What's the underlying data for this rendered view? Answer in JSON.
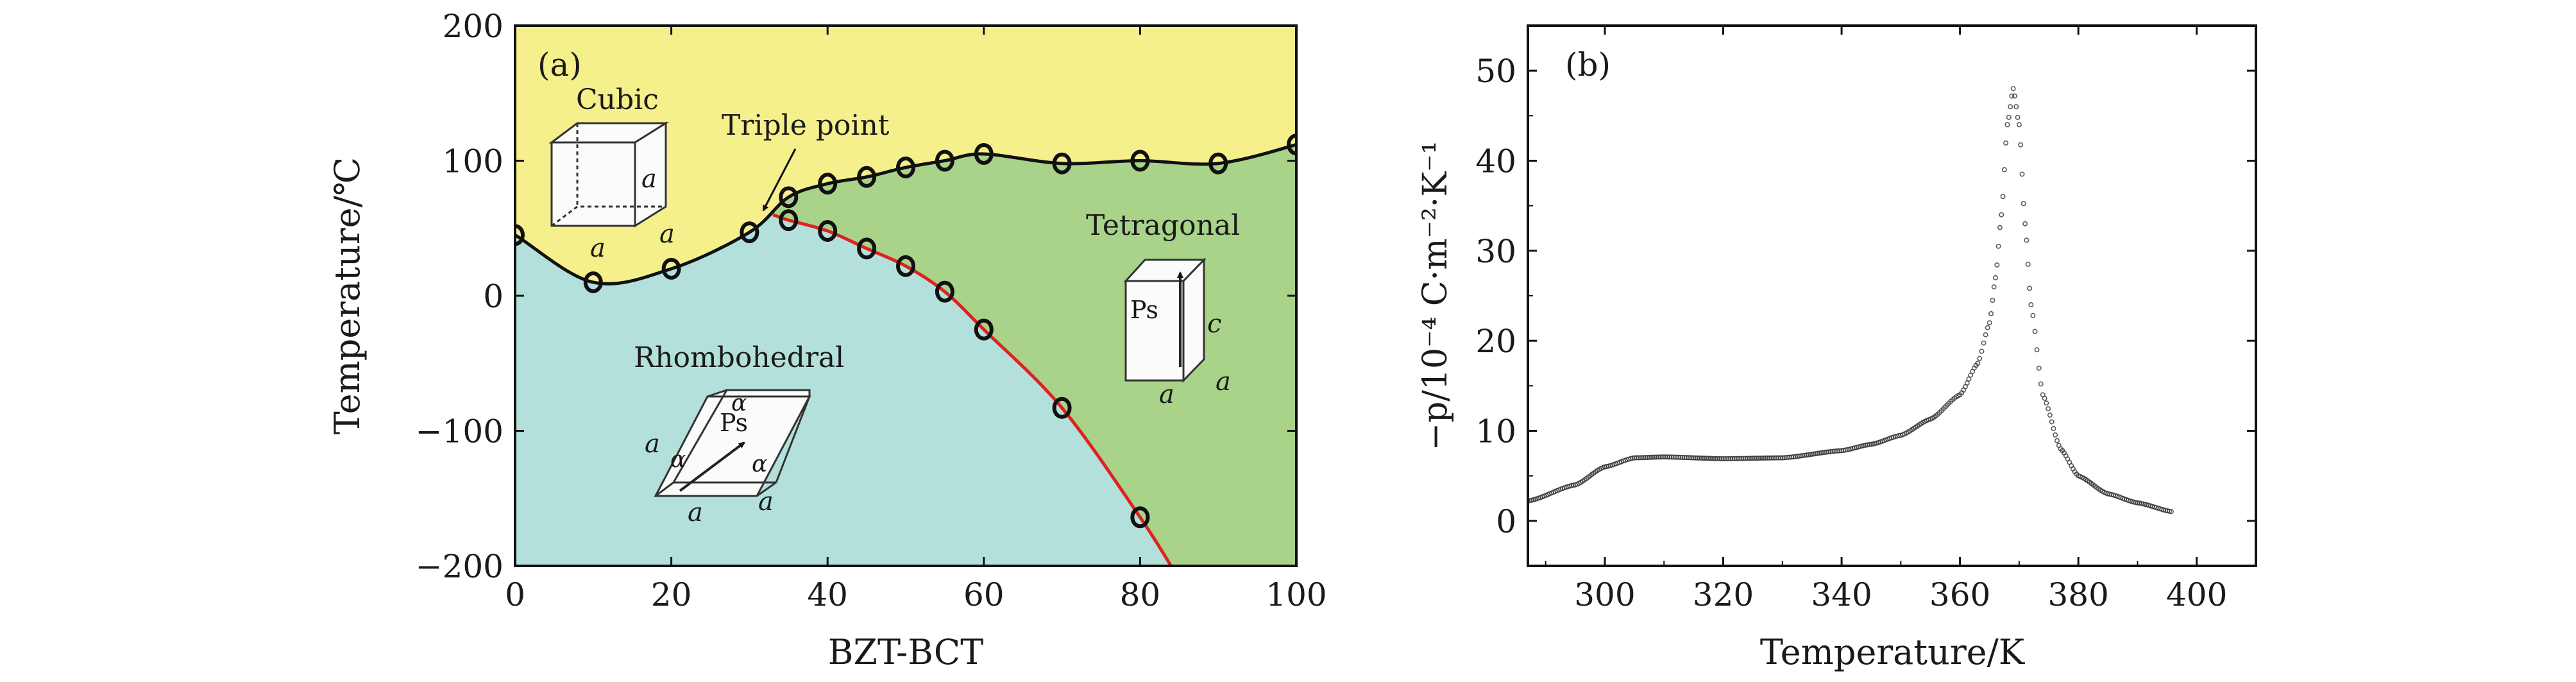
{
  "chart_data": [
    {
      "type": "line",
      "panel_label": "(a)",
      "xlabel": "BZT-BCT",
      "ylabel": "Temperature/℃",
      "xlim": [
        0,
        100
      ],
      "ylim": [
        -200,
        200
      ],
      "xticks": [
        "0",
        "20",
        "40",
        "60",
        "80",
        "100"
      ],
      "yticks": [
        "−200",
        "−100",
        "0",
        "100",
        "200"
      ],
      "series": [
        {
          "color": "#111111",
          "marker": "open-circle",
          "x": [
            0,
            10,
            20,
            30,
            35,
            40,
            45,
            50,
            55,
            60,
            70,
            80,
            90,
            100
          ],
          "y": [
            45,
            10,
            20,
            47,
            73,
            83,
            88,
            95,
            100,
            105,
            98,
            100,
            98,
            112
          ]
        },
        {
          "color": "#dd2222",
          "marker": "open-circle",
          "x": [
            35,
            40,
            45,
            50,
            55,
            60,
            70,
            80
          ],
          "y": [
            56,
            48,
            35,
            22,
            3,
            -25,
            -83,
            -164
          ]
        }
      ],
      "regions": [
        {
          "name": "cubic",
          "color": "#f5ef8c"
        },
        {
          "name": "rhombohedral",
          "color": "#b3e0da"
        },
        {
          "name": "tetragonal",
          "color": "#a8d389"
        }
      ],
      "annotations": {
        "cubic": "Cubic",
        "triple_point": "Triple point",
        "tetragonal": "Tetragonal",
        "rhombohedral": "Rhombohedral",
        "lattice_a": "a",
        "lattice_c": "c",
        "alpha": "α",
        "ps": "Ps"
      }
    },
    {
      "type": "line",
      "panel_label": "(b)",
      "xlabel": "Temperature/K",
      "ylabel": "−p/10⁻⁴ C·m⁻²·K⁻¹",
      "xlim": [
        287,
        410
      ],
      "ylim": [
        -5,
        55
      ],
      "xticks": [
        "300",
        "320",
        "340",
        "360",
        "380",
        "400"
      ],
      "yticks": [
        "0",
        "10",
        "20",
        "30",
        "40",
        "50"
      ],
      "series": [
        {
          "color": "#333333",
          "x": [
            287,
            295,
            300,
            305,
            310,
            320,
            330,
            340,
            345,
            350,
            355,
            360,
            363,
            365,
            366,
            367,
            368,
            369,
            370,
            371,
            372,
            374,
            377,
            380,
            385,
            390,
            396
          ],
          "y": [
            2.2,
            4.0,
            6.0,
            7.0,
            7.1,
            6.9,
            7.0,
            7.8,
            8.5,
            9.5,
            11.3,
            14.0,
            17.5,
            22,
            27,
            34,
            44,
            48,
            44,
            33,
            24,
            14,
            8.0,
            5.0,
            3.0,
            2.0,
            1.0
          ]
        }
      ]
    }
  ]
}
